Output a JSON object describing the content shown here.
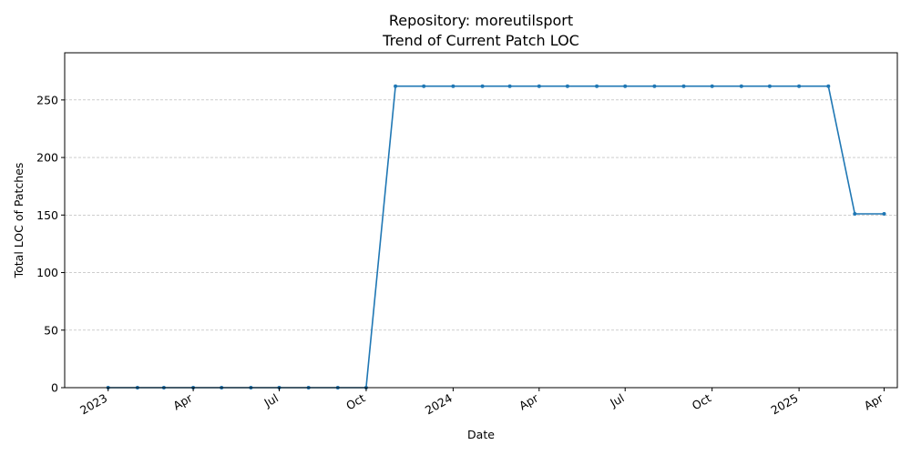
{
  "chart_data": {
    "type": "line",
    "title": "Repository: moreutilsport",
    "subtitle": "Trend of Current Patch LOC",
    "xlabel": "Date",
    "ylabel": "Total LOC of Patches",
    "xlim": [
      "2022-11-16",
      "2025-04-15"
    ],
    "ylim": [
      0,
      291
    ],
    "grid": {
      "y": true,
      "x": false
    },
    "line_color": "#1f77b4",
    "x_ticks": [
      {
        "date": "2023-01-01",
        "label": "2023"
      },
      {
        "date": "2023-04-01",
        "label": "Apr"
      },
      {
        "date": "2023-07-01",
        "label": "Jul"
      },
      {
        "date": "2023-10-01",
        "label": "Oct"
      },
      {
        "date": "2024-01-01",
        "label": "2024"
      },
      {
        "date": "2024-04-01",
        "label": "Apr"
      },
      {
        "date": "2024-07-01",
        "label": "Jul"
      },
      {
        "date": "2024-10-01",
        "label": "Oct"
      },
      {
        "date": "2025-01-01",
        "label": "2025"
      },
      {
        "date": "2025-04-01",
        "label": "Apr"
      }
    ],
    "y_ticks": [
      0,
      50,
      100,
      150,
      200,
      250
    ],
    "series": [
      {
        "x": [
          "2023-01-01",
          "2023-02-01",
          "2023-03-01",
          "2023-04-01",
          "2023-05-01",
          "2023-06-01",
          "2023-07-01",
          "2023-08-01",
          "2023-09-01",
          "2023-10-01",
          "2023-11-01",
          "2023-12-01",
          "2024-01-01",
          "2024-02-01",
          "2024-03-01",
          "2024-04-01",
          "2024-05-01",
          "2024-06-01",
          "2024-07-01",
          "2024-08-01",
          "2024-09-01",
          "2024-10-01",
          "2024-11-01",
          "2024-12-01",
          "2025-01-01",
          "2025-02-01",
          "2025-03-01",
          "2025-04-01"
        ],
        "values": [
          0,
          0,
          0,
          0,
          0,
          0,
          0,
          0,
          0,
          0,
          262,
          262,
          262,
          262,
          262,
          262,
          262,
          262,
          262,
          262,
          262,
          262,
          262,
          262,
          262,
          262,
          151,
          151
        ]
      }
    ]
  }
}
